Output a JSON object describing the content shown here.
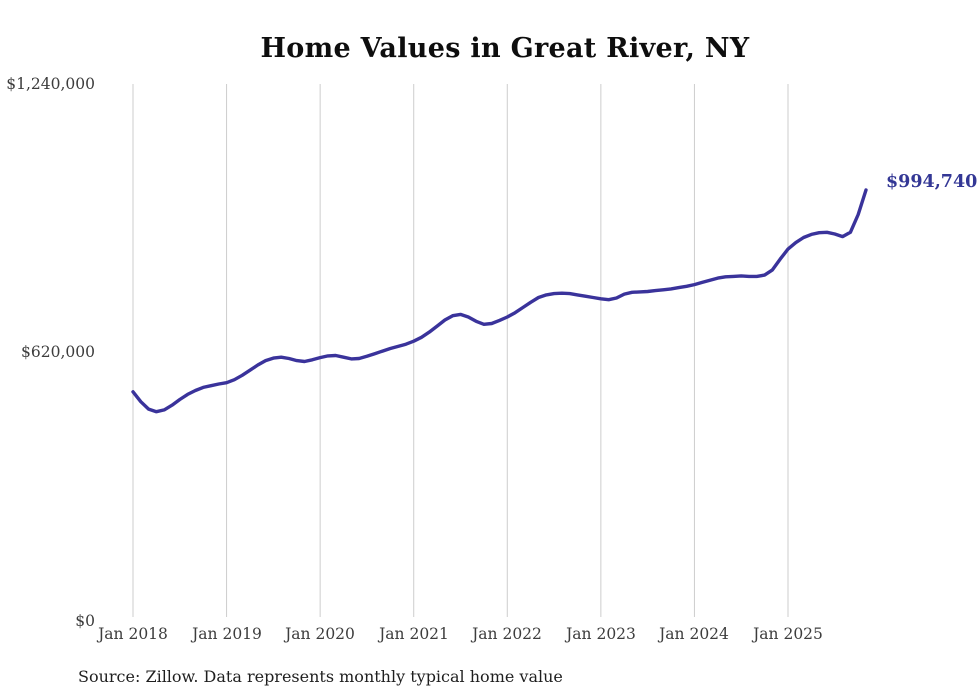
{
  "title": "Home Values in Great River, NY",
  "source_note": "Source: Zillow. Data represents monthly typical home value",
  "end_label": "$994,740",
  "colors": {
    "line": "#3a339b",
    "grid": "#cdcdcd",
    "axis_text": "#3d3d3d",
    "end_label_text": "#333795"
  },
  "chart_data": {
    "type": "line",
    "title": "Home Values in Great River, NY",
    "xlabel": "",
    "ylabel": "",
    "ylim": [
      0,
      1240000
    ],
    "grid": "vertical-only",
    "legend": "none",
    "y_tick_labels": [
      "$0",
      "$620,000",
      "$1,240,000"
    ],
    "y_tick_values": [
      0,
      620000,
      1240000
    ],
    "x_tick_labels": [
      "Jan 2018",
      "Jan 2019",
      "Jan 2020",
      "Jan 2021",
      "Jan 2022",
      "Jan 2023",
      "Jan 2024",
      "Jan 2025"
    ],
    "x_start_month": "Jan 2018",
    "x_end_month": "Nov 2025",
    "end_point_label": "$994,740",
    "end_point_value": 994740,
    "series": [
      {
        "name": "Monthly typical home value",
        "values": [
          528000,
          505000,
          488000,
          482000,
          486000,
          497000,
          510000,
          522000,
          531000,
          538000,
          542000,
          546000,
          549000,
          556000,
          566000,
          578000,
          590000,
          600000,
          606000,
          608000,
          605000,
          600000,
          598000,
          602000,
          607000,
          611000,
          612000,
          608000,
          604000,
          605000,
          610000,
          616000,
          622000,
          628000,
          633000,
          638000,
          645000,
          654000,
          666000,
          680000,
          694000,
          704000,
          707000,
          701000,
          691000,
          684000,
          686000,
          693000,
          701000,
          711000,
          723000,
          735000,
          746000,
          752000,
          755000,
          756000,
          755000,
          752000,
          749000,
          746000,
          743000,
          741000,
          745000,
          754000,
          758000,
          759000,
          760000,
          762000,
          764000,
          766000,
          769000,
          772000,
          776000,
          781000,
          786000,
          791000,
          794000,
          795000,
          796000,
          795000,
          795000,
          798000,
          810000,
          835000,
          858000,
          873000,
          885000,
          892000,
          896000,
          897000,
          893000,
          887000,
          897000,
          938000,
          994740
        ]
      }
    ]
  }
}
